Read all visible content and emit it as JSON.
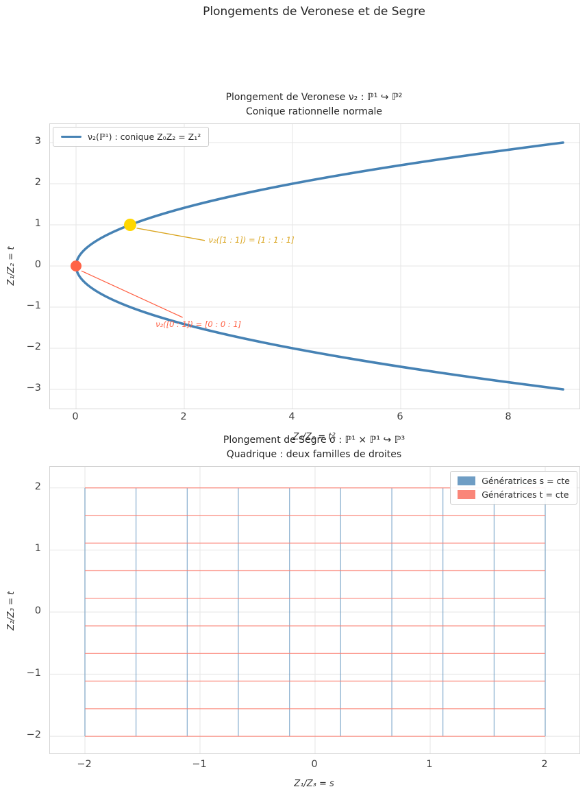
{
  "figure_title": "Plongements de Veronese et de Segre",
  "colors": {
    "curve_blue": "#4682b4",
    "point_gold": "#ffd700",
    "annotation_gold": "#daa520",
    "point_tomato": "#ff6347",
    "annotation_tomato": "#ff6347",
    "patch_blue": "rgba(70,130,180,0.78)",
    "patch_salmon": "rgba(250,128,114,0.95)",
    "line_blue": "rgba(70,130,180,0.6)",
    "line_salmon": "rgba(250,128,114,0.85)",
    "grid": "#e9e9e9",
    "spine": "#d4d4d4"
  },
  "veronese_panel": {
    "title_line1": "Plongement de Veronese ν₂ : ℙ¹ ↪ ℙ²",
    "title_line2": "Conique rationnelle normale",
    "xlabel": "Z₀/Z₂ = t²",
    "ylabel": "Z₁/Z₂ = t",
    "legend_label": "ν₂(ℙ¹) : conique Z₀Z₂ = Z₁²",
    "annotation_unit": "ν₂([1 : 1]) = [1 : 1 : 1]",
    "annotation_zero": "ν₂([0 : 1]) = [0 : 0 : 1]"
  },
  "segre_panel": {
    "title_line1": "Plongement de Segre σ : ℙ¹ × ℙ¹ ↪ ℙ³",
    "title_line2": "Quadrique : deux familles de droites",
    "xlabel": "Z₁/Z₃ = s",
    "ylabel": "Z₂/Z₃ = t",
    "legend_s": "Génératrices s = cte",
    "legend_t": "Génératrices t = cte"
  },
  "chart_data": [
    {
      "type": "line",
      "title": "Plongement de Veronese ν₂ : ℙ¹ ↪ ℙ²",
      "subtitle": "Conique rationnelle normale",
      "xlabel": "Z₀/Z₂ = t²",
      "ylabel": "Z₁/Z₂ = t",
      "grid": true,
      "legend_position": "upper left",
      "xlim": [
        -0.5,
        9.3
      ],
      "ylim": [
        -3.45,
        3.45
      ],
      "x_ticks": [
        0,
        2,
        4,
        6,
        8
      ],
      "y_ticks": [
        3,
        2,
        1,
        0,
        -1,
        -2,
        -3
      ],
      "series": [
        {
          "name": "ν₂(ℙ¹) : conique Z₀Z₂ = Z₁²",
          "color": "#4682b4",
          "parametric": "x = t², y = t, t ∈ [−3, 3]",
          "x": [
            9,
            4,
            1,
            0,
            1,
            4,
            9
          ],
          "y": [
            -3,
            -2,
            -1,
            0,
            1,
            2,
            3
          ]
        }
      ],
      "points": [
        {
          "x": 1,
          "y": 1,
          "r": 9,
          "color": "#ffd700",
          "label": "ν₂([1 : 1]) = [1 : 1 : 1]",
          "label_color": "#daa520",
          "text_xy": [
            2.45,
            0.62
          ],
          "arrow_from_xy": [
            1.12,
            0.92
          ],
          "arrow_to_xy": [
            2.38,
            0.62
          ]
        },
        {
          "x": 0,
          "y": 0,
          "r": 8,
          "color": "#ff6347",
          "label": "ν₂([0 : 1]) = [0 : 0 : 1]",
          "label_color": "#ff6347",
          "text_xy": [
            1.47,
            -1.43
          ],
          "arrow_from_xy": [
            0.1,
            -0.12
          ],
          "arrow_to_xy": [
            1.97,
            -1.25
          ]
        }
      ]
    },
    {
      "type": "line-grid",
      "title": "Plongement de Segre σ : ℙ¹ × ℙ¹ ↪ ℙ³",
      "subtitle": "Quadrique : deux familles de droites",
      "xlabel": "Z₁/Z₃ = s",
      "ylabel": "Z₂/Z₃ = t",
      "grid": true,
      "legend_position": "upper right",
      "xlim": [
        -2.3,
        2.3
      ],
      "ylim": [
        -2.27,
        2.34
      ],
      "x_ticks": [
        -2,
        -1,
        0,
        1,
        2
      ],
      "y_ticks": [
        2,
        1,
        0,
        -1,
        -2
      ],
      "s_range": [
        -2,
        2
      ],
      "t_range": [
        -2,
        2
      ],
      "series": [
        {
          "name": "Génératrices s = cte",
          "orientation": "vertical",
          "color": "rgba(70,130,180,0.6)",
          "values": [
            -2,
            -1.556,
            -1.111,
            -0.667,
            -0.222,
            0.222,
            0.667,
            1.111,
            1.556,
            2
          ]
        },
        {
          "name": "Génératrices t = cte",
          "orientation": "horizontal",
          "color": "rgba(250,128,114,0.85)",
          "values": [
            -2,
            -1.556,
            -1.111,
            -0.667,
            -0.222,
            0.222,
            0.667,
            1.111,
            1.556,
            2
          ]
        }
      ]
    }
  ]
}
